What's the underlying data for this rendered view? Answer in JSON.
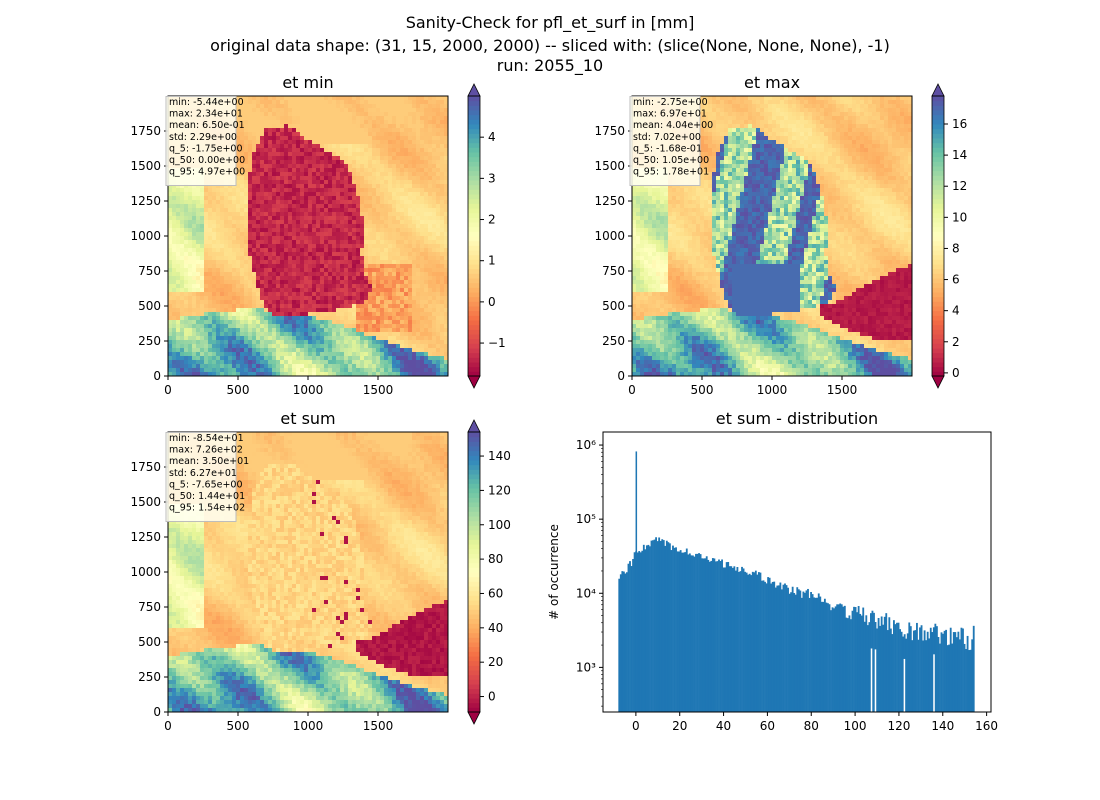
{
  "figure": {
    "title_lines": [
      "Sanity-Check for pfl_et_surf in [mm]",
      "original data shape: (31, 15, 2000, 2000) -- sliced with: (slice(None, None, None), -1)",
      "run: 2055_10"
    ]
  },
  "chart_data": [
    {
      "type": "heatmap",
      "title": "et min",
      "xlim": [
        0,
        2000
      ],
      "ylim": [
        0,
        2000
      ],
      "xticks": [
        "0",
        "500",
        "1000",
        "1500"
      ],
      "yticks": [
        "0",
        "250",
        "500",
        "750",
        "1000",
        "1250",
        "1500",
        "1750"
      ],
      "colormap": "Spectral",
      "colorbar": {
        "range": [
          -1.8,
          5.0
        ],
        "ticks": [
          "−1",
          "0",
          "1",
          "2",
          "3",
          "4"
        ],
        "tick_values": [
          -1,
          0,
          1,
          2,
          3,
          4
        ],
        "extend": "both"
      },
      "stats": [
        "min: -5.44e+00",
        "max: 2.34e+01",
        "mean: 6.50e-01",
        "std: 2.29e+00",
        "q_5: -1.75e+00",
        "q_50: 0.00e+00",
        "q_95: 4.97e+00"
      ]
    },
    {
      "type": "heatmap",
      "title": "et max",
      "xlim": [
        0,
        2000
      ],
      "ylim": [
        0,
        2000
      ],
      "xticks": [
        "0",
        "500",
        "1000",
        "1500"
      ],
      "yticks": [
        "0",
        "250",
        "500",
        "750",
        "1000",
        "1250",
        "1500",
        "1750"
      ],
      "colormap": "Spectral",
      "colorbar": {
        "range": [
          -0.2,
          17.8
        ],
        "ticks": [
          "0",
          "2",
          "4",
          "6",
          "8",
          "10",
          "12",
          "14",
          "16"
        ],
        "tick_values": [
          0,
          2,
          4,
          6,
          8,
          10,
          12,
          14,
          16
        ],
        "extend": "both"
      },
      "stats": [
        "min: -2.75e+00",
        "max: 6.97e+01",
        "mean: 4.04e+00",
        "std: 7.02e+00",
        "q_5: -1.68e-01",
        "q_50: 1.05e+00",
        "q_95: 1.78e+01"
      ]
    },
    {
      "type": "heatmap",
      "title": "et sum",
      "xlim": [
        0,
        2000
      ],
      "ylim": [
        0,
        2000
      ],
      "xticks": [
        "0",
        "500",
        "1000",
        "1500"
      ],
      "yticks": [
        "0",
        "250",
        "500",
        "750",
        "1000",
        "1250",
        "1500",
        "1750"
      ],
      "colormap": "Spectral",
      "colorbar": {
        "range": [
          -9,
          154
        ],
        "ticks": [
          "0",
          "20",
          "40",
          "60",
          "80",
          "100",
          "120",
          "140"
        ],
        "tick_values": [
          0,
          20,
          40,
          60,
          80,
          100,
          120,
          140
        ],
        "extend": "both"
      },
      "stats": [
        "min: -8.54e+01",
        "max: 7.26e+02",
        "mean: 3.50e+01",
        "std: 6.27e+01",
        "q_5: -7.65e+00",
        "q_50: 1.44e+01",
        "q_95: 1.54e+02"
      ]
    },
    {
      "type": "bar",
      "title": "et sum - distribution",
      "xlabel": "",
      "ylabel": "# of occurrence",
      "xlim": [
        -15,
        162
      ],
      "ylim": [
        250,
        1500000
      ],
      "yscale": "log",
      "xticks": [
        0,
        20,
        40,
        60,
        80,
        100,
        120,
        140,
        160
      ],
      "yticks": [
        {
          "value": 1000,
          "label": "10³"
        },
        {
          "value": 10000,
          "label": "10⁴"
        },
        {
          "value": 100000,
          "label": "10⁵"
        },
        {
          "value": 1000000,
          "label": "10⁶"
        }
      ],
      "bar_color": "#1f77b4",
      "histogram_envelope": {
        "x": [
          -8,
          -6,
          -4,
          -2,
          0,
          2,
          4,
          6,
          8,
          10,
          12,
          14,
          16,
          18,
          20,
          25,
          30,
          35,
          40,
          45,
          50,
          55,
          60,
          65,
          70,
          75,
          80,
          85,
          90,
          95,
          100,
          105,
          110,
          115,
          120,
          125,
          130,
          135,
          140,
          145,
          150,
          154
        ],
        "y": [
          17000,
          19000,
          22000,
          26000,
          35000,
          38000,
          42000,
          46000,
          50000,
          52000,
          51000,
          47000,
          42000,
          39000,
          37000,
          35000,
          31000,
          28000,
          25000,
          22000,
          20000,
          18000,
          15000,
          13000,
          11000,
          10000,
          9500,
          8500,
          7000,
          6000,
          5500,
          4800,
          4300,
          4000,
          3500,
          3200,
          3000,
          2800,
          2700,
          2600,
          2500,
          2400
        ]
      },
      "spikes": [
        {
          "x": 0.2,
          "y": 820000
        },
        {
          "x": 107.5,
          "y": 1800
        },
        {
          "x": 109.3,
          "y": 1750
        },
        {
          "x": 122.5,
          "y": 1300
        },
        {
          "x": 136,
          "y": 1500
        }
      ]
    }
  ]
}
